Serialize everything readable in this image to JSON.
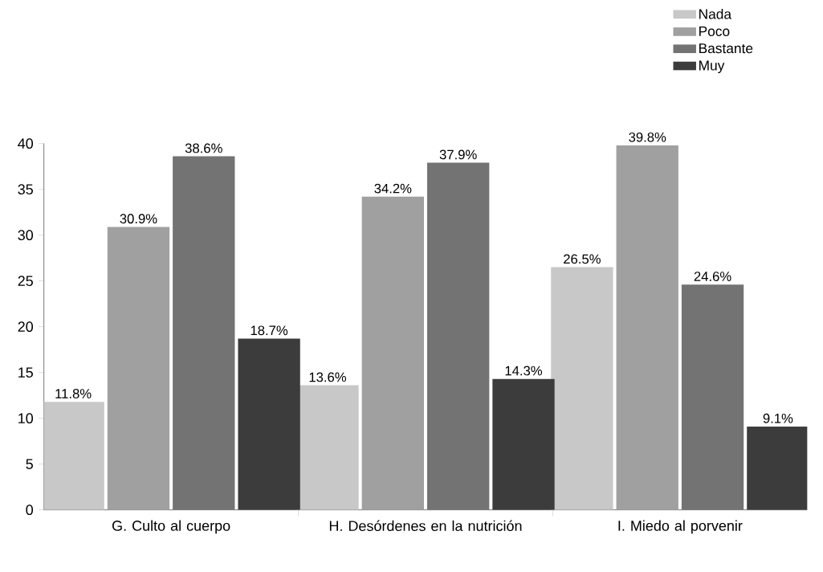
{
  "chart_data": {
    "type": "bar",
    "categories": [
      "G. Culto al cuerpo",
      "H. Desórdenes en la nutrición",
      "I. Miedo al porvenir"
    ],
    "series": [
      {
        "name": "Nada",
        "color": "#c8c8c8",
        "values": [
          11.8,
          13.6,
          26.5
        ],
        "value_labels": [
          "11.8%",
          "13.6%",
          "26.5%"
        ]
      },
      {
        "name": "Poco",
        "color": "#a0a0a0",
        "values": [
          30.9,
          34.2,
          39.8
        ],
        "value_labels": [
          "30.9%",
          "34.2%",
          "39.8%"
        ]
      },
      {
        "name": "Bastante",
        "color": "#737373",
        "values": [
          38.6,
          37.9,
          24.6
        ],
        "value_labels": [
          "38.6%",
          "37.9%",
          "24.6%"
        ]
      },
      {
        "name": "Muy",
        "color": "#3c3c3c",
        "values": [
          18.7,
          14.3,
          9.1
        ],
        "value_labels": [
          "18.7%",
          "14.3%",
          "9.1%"
        ]
      }
    ],
    "ylim": [
      0,
      40
    ],
    "yticks": [
      0,
      5,
      10,
      15,
      20,
      25,
      30,
      35,
      40
    ],
    "grid": false,
    "legend": "top right"
  }
}
